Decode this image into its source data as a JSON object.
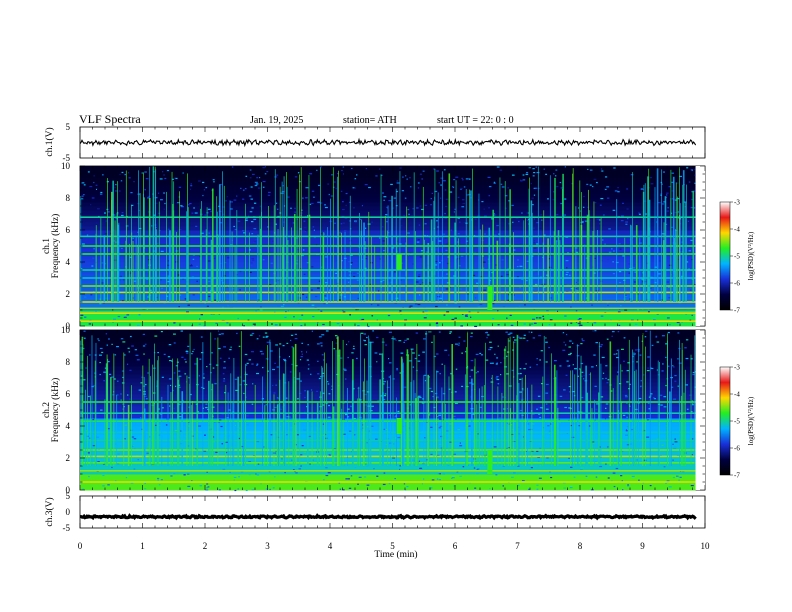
{
  "header": {
    "title": "VLF  Spectra",
    "date": "Jan. 19, 2025",
    "station": "station= ATH",
    "start": "start  UT  =   22: 0  : 0"
  },
  "chart_data": [
    {
      "type": "line",
      "name": "ch1-waveform",
      "ylabel": "ch.1(V)",
      "xlim": [
        0,
        9.85
      ],
      "ylim": [
        -5,
        5
      ],
      "yticks": [
        "5",
        "-5"
      ],
      "y_mean": 0,
      "y_amplitude": 0.8
    },
    {
      "type": "heatmap",
      "name": "ch1-spectrogram",
      "ylabel_line1": "ch.1",
      "ylabel_line2": "Frequency  (kHz)",
      "xlim": [
        0,
        9.85
      ],
      "ylim": [
        0,
        10
      ],
      "yticks": [
        "0",
        "2",
        "4",
        "6",
        "8",
        "10"
      ],
      "background_bands_khz": [
        0.3,
        0.8,
        1.1,
        1.5,
        2.1,
        2.5,
        3.0,
        3.5,
        4.5,
        5.0,
        5.6,
        6.8
      ],
      "features": [
        {
          "x": 5.1,
          "f_lo": 3.5,
          "f_hi": 4.5,
          "note": "burst"
        },
        {
          "x": 6.55,
          "f_lo": 1.0,
          "f_hi": 2.5,
          "note": "step"
        }
      ]
    },
    {
      "type": "heatmap",
      "name": "ch2-spectrogram",
      "ylabel_line1": "ch.2",
      "ylabel_line2": "Frequency  (kHz)",
      "xlim": [
        0,
        9.85
      ],
      "ylim": [
        0,
        10
      ],
      "yticks": [
        "0",
        "2",
        "4",
        "6",
        "8",
        "10"
      ],
      "background_bands_khz": [
        0.5,
        1.2,
        1.7,
        2.1,
        2.5,
        3.1,
        3.6,
        4.3,
        4.8,
        5.5
      ],
      "features": [
        {
          "x": 5.1,
          "f_lo": 3.5,
          "f_hi": 4.5,
          "note": "burst"
        },
        {
          "x": 6.55,
          "f_lo": 1.0,
          "f_hi": 2.5,
          "note": "step"
        }
      ]
    },
    {
      "type": "line",
      "name": "ch3-waveform",
      "ylabel": "ch.3(V)",
      "xlim": [
        0,
        9.85
      ],
      "ylim": [
        -5,
        5
      ],
      "yticks": [
        "5",
        "0",
        "-5"
      ],
      "y_mean": -1.5,
      "y_amplitude": 0.3
    }
  ],
  "x_axis": {
    "label": "Time  (min)",
    "range": [
      0,
      10
    ],
    "ticks": [
      "0",
      "1",
      "2",
      "3",
      "4",
      "5",
      "6",
      "7",
      "8",
      "9",
      "10"
    ]
  },
  "colorbar": {
    "label": "log(PSD)(V²/Hz)",
    "range": [
      -7,
      -3
    ],
    "ticks": [
      "-3",
      "-4",
      "-5",
      "-6",
      "-7"
    ],
    "colors": [
      "#ffffff",
      "#e81818",
      "#ffd700",
      "#22ee22",
      "#00b4ff",
      "#1830d8",
      "#000040",
      "#000000"
    ]
  }
}
